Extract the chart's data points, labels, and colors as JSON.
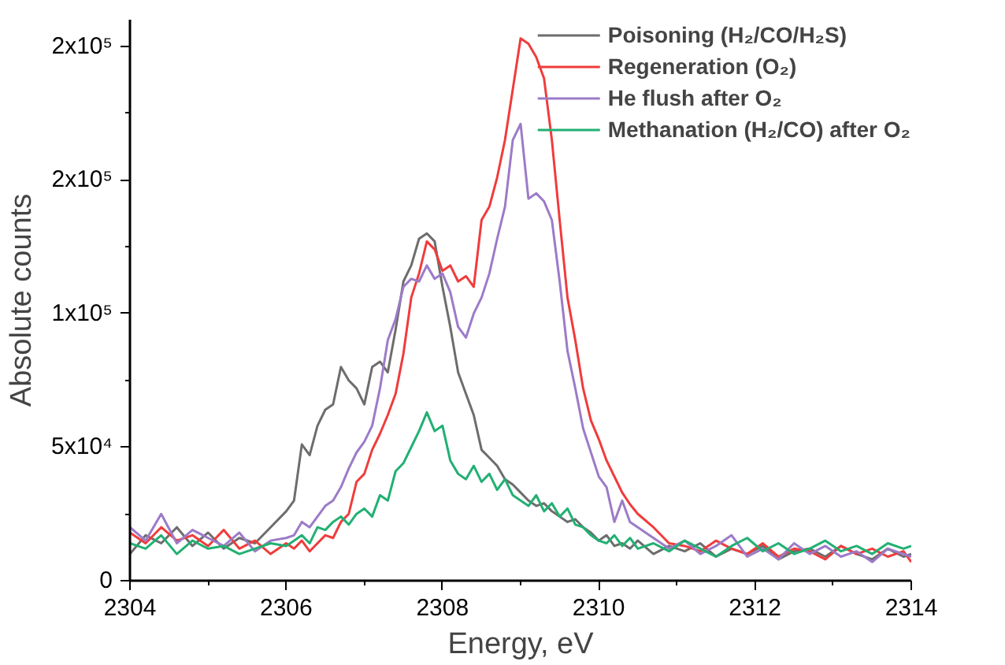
{
  "chart_data": {
    "type": "line",
    "xlabel": "Energy, eV",
    "ylabel": "Absolute counts",
    "x": [
      2304,
      2304.2,
      2304.4,
      2304.6,
      2304.8,
      2305,
      2305.2,
      2305.4,
      2305.6,
      2305.8,
      2306,
      2306.1,
      2306.2,
      2306.3,
      2306.4,
      2306.5,
      2306.6,
      2306.7,
      2306.8,
      2306.9,
      2307,
      2307.1,
      2307.2,
      2307.3,
      2307.4,
      2307.5,
      2307.6,
      2307.7,
      2307.8,
      2307.9,
      2308,
      2308.1,
      2308.2,
      2308.3,
      2308.4,
      2308.5,
      2308.6,
      2308.7,
      2308.8,
      2308.9,
      2309,
      2309.1,
      2309.2,
      2309.3,
      2309.4,
      2309.5,
      2309.6,
      2309.7,
      2309.8,
      2309.9,
      2310,
      2310.1,
      2310.2,
      2310.3,
      2310.4,
      2310.5,
      2310.7,
      2310.9,
      2311.1,
      2311.3,
      2311.5,
      2311.7,
      2311.9,
      2312.1,
      2312.3,
      2312.5,
      2312.7,
      2312.9,
      2313.1,
      2313.3,
      2313.5,
      2313.7,
      2313.9,
      2314
    ],
    "series": [
      {
        "name": "Poisoning (H₂/CO/H₂S)",
        "color": "#6d6d6d",
        "values": [
          10000,
          17000,
          14000,
          20000,
          13000,
          18000,
          12000,
          16000,
          14000,
          20000,
          26000,
          30000,
          51000,
          47000,
          58000,
          64000,
          66000,
          80000,
          75000,
          72000,
          66000,
          80000,
          82000,
          78000,
          94000,
          112000,
          118000,
          128000,
          130000,
          127000,
          110000,
          95000,
          78000,
          70000,
          62000,
          49000,
          46000,
          43000,
          38000,
          36000,
          33000,
          30000,
          28000,
          29000,
          26000,
          24000,
          22000,
          23000,
          20000,
          18000,
          15000,
          17000,
          13000,
          14000,
          12000,
          15000,
          10000,
          13000,
          11000,
          14000,
          9000,
          12000,
          10000,
          13000,
          8000,
          11000,
          12000,
          9000,
          13000,
          10000,
          8000,
          12000,
          9000,
          10000
        ]
      },
      {
        "name": "Regeneration (O₂)",
        "color": "#f03c3c",
        "values": [
          18000,
          14000,
          20000,
          15000,
          17000,
          13000,
          19000,
          12000,
          15000,
          10000,
          14000,
          12000,
          15000,
          11000,
          14000,
          17000,
          16000,
          22000,
          25000,
          37000,
          40000,
          49000,
          55000,
          62000,
          70000,
          85000,
          106000,
          115000,
          127000,
          124000,
          116000,
          118000,
          112000,
          114000,
          110000,
          135000,
          140000,
          151000,
          165000,
          184000,
          203000,
          201000,
          196000,
          188000,
          165000,
          135000,
          106000,
          90000,
          72000,
          60000,
          53000,
          45000,
          39000,
          33000,
          28600,
          25000,
          20000,
          14000,
          13000,
          11000,
          15000,
          12000,
          10000,
          14000,
          9000,
          12000,
          11000,
          8000,
          13000,
          10000,
          12000,
          9000,
          11000,
          7000
        ]
      },
      {
        "name": "He flush after O₂",
        "color": "#9c7bc8",
        "values": [
          20000,
          15000,
          25000,
          14000,
          19000,
          16000,
          13000,
          18000,
          11000,
          15000,
          16000,
          17000,
          22000,
          20000,
          24000,
          28000,
          30000,
          35000,
          42000,
          48000,
          52000,
          58000,
          72000,
          90000,
          98000,
          110000,
          113000,
          112000,
          118000,
          113000,
          115000,
          108000,
          95000,
          91000,
          100000,
          106000,
          115000,
          128000,
          140000,
          165000,
          171000,
          143000,
          145000,
          142000,
          135000,
          112000,
          86000,
          72000,
          57000,
          48000,
          39000,
          35000,
          22000,
          30000,
          22000,
          20000,
          16000,
          12000,
          15000,
          10000,
          13000,
          17000,
          9000,
          12000,
          8000,
          14000,
          10000,
          13000,
          9000,
          11000,
          7000,
          12000,
          10000,
          9000
        ]
      },
      {
        "name": "Methanation (H₂/CO) after O₂",
        "color": "#22b073",
        "values": [
          14000,
          12000,
          17000,
          10000,
          15000,
          12000,
          13000,
          10000,
          12000,
          14000,
          13000,
          15000,
          17000,
          14000,
          20000,
          19000,
          22000,
          24000,
          21000,
          25000,
          27000,
          24000,
          32000,
          30000,
          41000,
          44000,
          50000,
          56000,
          63000,
          56000,
          58000,
          45000,
          40000,
          38000,
          43000,
          37000,
          40000,
          34000,
          38000,
          32000,
          30000,
          28000,
          32000,
          26000,
          29000,
          24000,
          27000,
          21000,
          20000,
          17000,
          15000,
          14000,
          17000,
          13000,
          16000,
          12000,
          14000,
          11000,
          15000,
          12000,
          9000,
          13000,
          16000,
          11000,
          14000,
          10000,
          12000,
          15000,
          11000,
          13000,
          10000,
          14000,
          12000,
          13000
        ]
      }
    ],
    "xlim": [
      2304,
      2314
    ],
    "xticks": [
      2304,
      2306,
      2308,
      2310,
      2312,
      2314
    ],
    "ylim": [
      0,
      210000
    ],
    "yticks": [
      0,
      {
        "value": 50000,
        "label": "5x10⁴"
      },
      {
        "value": 100000,
        "label": "1x10⁵"
      },
      {
        "value": 150000,
        "label": "2x10⁵"
      },
      {
        "value": 200000,
        "label": "2x10⁵"
      }
    ],
    "legend": "top right",
    "grid": false,
    "marker": "none",
    "line_style": "solid"
  }
}
